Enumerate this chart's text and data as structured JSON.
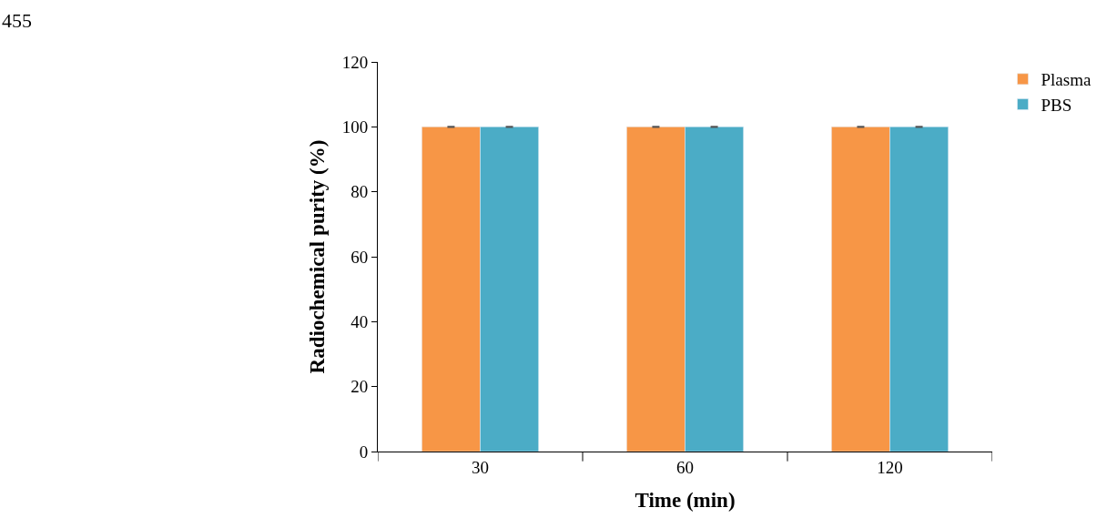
{
  "chart_data": {
    "type": "bar",
    "categories": [
      "30",
      "60",
      "120"
    ],
    "xlabel": "Time (min)",
    "ylabel": "Radiochemical purity (%)",
    "series": [
      {
        "name": "Plasma",
        "color": "#f79646",
        "values": [
          100,
          100,
          100
        ],
        "errors": [
          0.1,
          0.1,
          0.1
        ]
      },
      {
        "name": "PBS",
        "color": "#4bacc6",
        "values": [
          100,
          100,
          100
        ],
        "errors": [
          0.1,
          0.1,
          0.1
        ]
      }
    ],
    "ylim": [
      0,
      120
    ],
    "yticks": [
      0,
      20,
      40,
      60,
      80,
      100,
      120
    ],
    "legend": "top right",
    "annotations": [
      "455"
    ]
  }
}
